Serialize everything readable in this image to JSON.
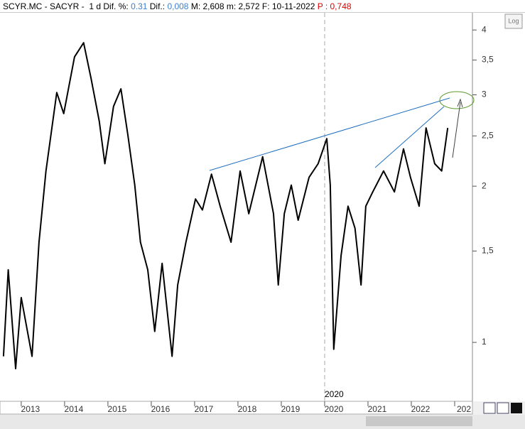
{
  "header": {
    "symbol": "SCYR.MC - SACYR -  1 d",
    "dif_pct_label": "Dif. %:",
    "dif_pct": "0.31",
    "dif_label": "Dif.:",
    "dif": "0,008",
    "stats": "M: 2,608 m: 2,572 F: 10-11-2022",
    "p": "P : 0,748"
  },
  "log_button": "Log",
  "marker_label": "2020",
  "chart_data": {
    "type": "line",
    "log_scale": true,
    "color": "#000000",
    "x": [
      2012.59,
      2012.7,
      2012.87,
      2013.0,
      2013.25,
      2013.41,
      2013.57,
      2013.82,
      2013.98,
      2014.23,
      2014.44,
      2014.61,
      2014.8,
      2014.93,
      2015.13,
      2015.3,
      2015.46,
      2015.62,
      2015.75,
      2015.92,
      2016.08,
      2016.25,
      2016.48,
      2016.61,
      2016.8,
      2017.02,
      2017.18,
      2017.39,
      2017.59,
      2017.84,
      2018.05,
      2018.25,
      2018.57,
      2018.82,
      2018.93,
      2019.07,
      2019.23,
      2019.39,
      2019.64,
      2019.85,
      2020.05,
      2020.13,
      2020.21,
      2020.38,
      2020.54,
      2020.7,
      2020.84,
      2020.95,
      2021.11,
      2021.36,
      2021.61,
      2021.82,
      2021.98,
      2022.18,
      2022.34,
      2022.54,
      2022.7,
      2022.84
    ],
    "values": [
      0.94,
      1.38,
      0.89,
      1.22,
      0.94,
      1.56,
      2.14,
      3.03,
      2.76,
      3.55,
      3.78,
      3.23,
      2.67,
      2.21,
      2.85,
      3.08,
      2.51,
      2.01,
      1.56,
      1.38,
      1.05,
      1.42,
      0.94,
      1.29,
      1.56,
      1.89,
      1.8,
      2.11,
      1.83,
      1.56,
      2.14,
      1.77,
      2.28,
      1.77,
      1.29,
      1.77,
      2.01,
      1.72,
      2.08,
      2.21,
      2.47,
      2.01,
      0.97,
      1.47,
      1.83,
      1.66,
      1.29,
      1.83,
      1.95,
      2.14,
      1.95,
      2.36,
      2.08,
      1.83,
      2.59,
      2.21,
      2.14,
      2.59
    ],
    "xlim": [
      2012.51,
      2023.41
    ],
    "xticks": [
      2013,
      2014,
      2015,
      2016,
      2017,
      2018,
      2019,
      2020,
      2021,
      2022,
      {
        "value": 2023,
        "label": "202"
      }
    ],
    "ylim": [
      0.77,
      4.29
    ],
    "yticks": [
      1,
      {
        "value": 1.5,
        "label": "1,5"
      },
      2,
      {
        "value": 2.5,
        "label": "2,5"
      },
      3,
      {
        "value": 3.5,
        "label": "3,5"
      },
      4
    ]
  }
}
